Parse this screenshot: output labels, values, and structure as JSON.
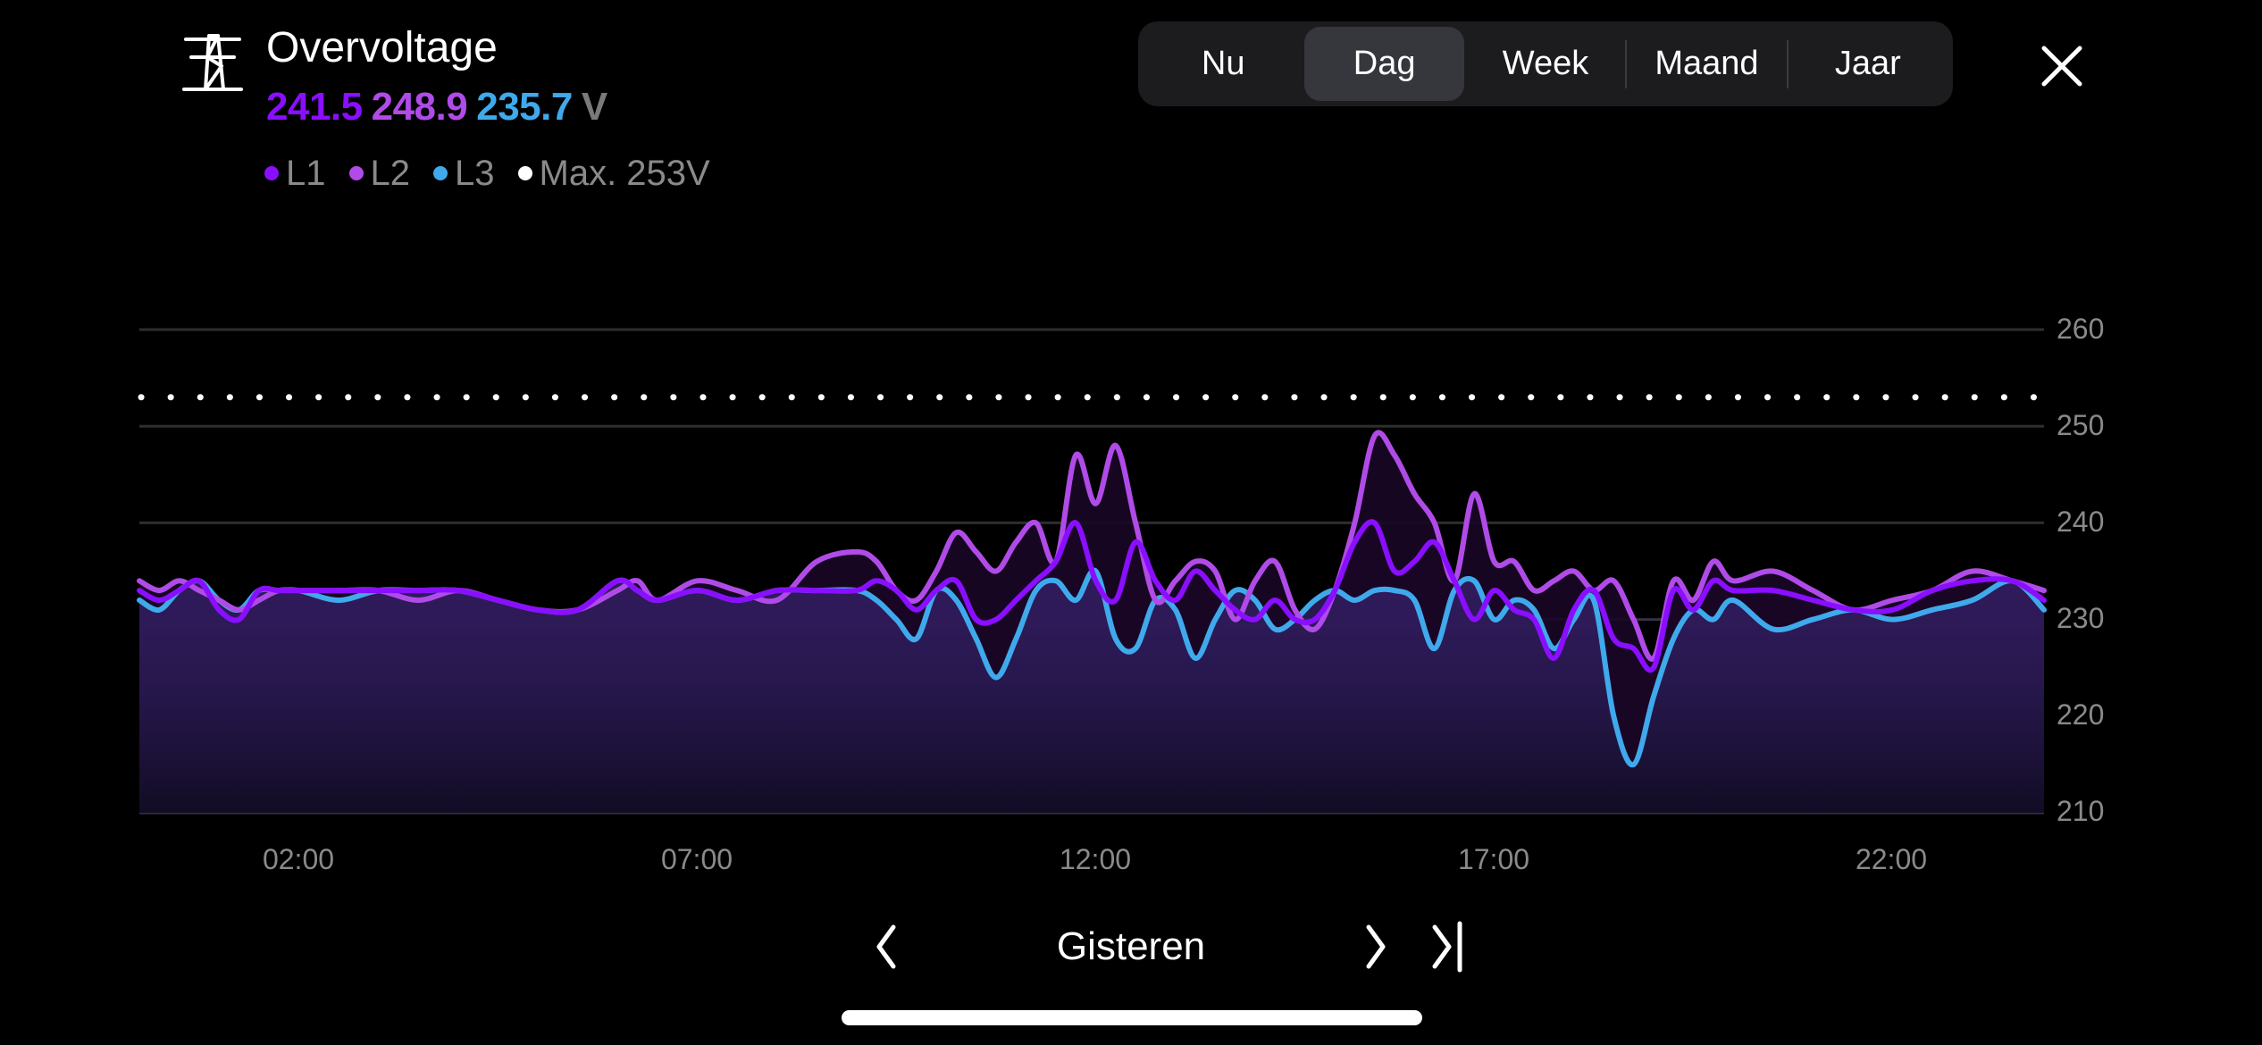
{
  "header": {
    "icon": "power-pylon-icon",
    "title": "Overvoltage",
    "values": [
      {
        "phase": "L1",
        "value": "241.5",
        "color": "#8a0eff"
      },
      {
        "phase": "L2",
        "value": "248.9",
        "color": "#b04be8"
      },
      {
        "phase": "L3",
        "value": "235.7",
        "color": "#3fa9ec"
      }
    ],
    "unit": "V",
    "legend": [
      {
        "label": "L1",
        "color": "#8a0eff"
      },
      {
        "label": "L2",
        "color": "#b04be8"
      },
      {
        "label": "L3",
        "color": "#3fa9ec"
      },
      {
        "label": "Max. 253V",
        "color": "#ffffff"
      }
    ]
  },
  "period_selector": {
    "options": [
      "Nu",
      "Dag",
      "Week",
      "Maand",
      "Jaar"
    ],
    "selected": "Dag"
  },
  "close_icon": "close-icon",
  "navigation": {
    "prev_icon": "chevron-left-icon",
    "label": "Gisteren",
    "next_icon": "chevron-right-icon",
    "last_icon": "skip-to-end-icon"
  },
  "colors": {
    "background": "#000000",
    "L1": "#8a0eff",
    "L2": "#b04be8",
    "L3": "#3fa9ec",
    "max_line": "#ffffff",
    "grid": "#2e2e30",
    "axis_text": "#8a8a8a",
    "fill": "#2a1b52"
  },
  "chart_data": {
    "type": "line",
    "title": "Overvoltage",
    "xlabel": "",
    "ylabel": "V",
    "xlim": [
      0,
      23.9
    ],
    "ylim": [
      210,
      260
    ],
    "yticks": [
      210,
      220,
      230,
      240,
      250,
      260
    ],
    "xticks": [
      {
        "label": "02:00",
        "hour": 2
      },
      {
        "label": "07:00",
        "hour": 7
      },
      {
        "label": "12:00",
        "hour": 12
      },
      {
        "label": "17:00",
        "hour": 17
      },
      {
        "label": "22:00",
        "hour": 22
      }
    ],
    "grid": true,
    "legend_position": "top-left",
    "threshold": {
      "label": "Max. 253V",
      "value": 253,
      "style": "dotted"
    },
    "x": [
      0,
      0.25,
      0.5,
      0.75,
      1,
      1.25,
      1.5,
      1.75,
      2,
      2.5,
      3,
      3.5,
      4,
      4.5,
      5,
      5.5,
      6,
      6.25,
      6.5,
      7,
      7.5,
      8,
      8.5,
      9,
      9.25,
      9.5,
      9.75,
      10,
      10.25,
      10.5,
      10.75,
      11,
      11.25,
      11.5,
      11.75,
      12,
      12.25,
      12.5,
      12.75,
      13,
      13.25,
      13.5,
      13.75,
      14,
      14.25,
      14.5,
      14.75,
      15,
      15.25,
      15.5,
      15.75,
      16,
      16.25,
      16.5,
      16.75,
      17,
      17.25,
      17.5,
      17.75,
      18,
      18.25,
      18.5,
      18.75,
      19,
      19.25,
      19.5,
      19.75,
      20,
      20.5,
      21,
      21.5,
      22,
      22.5,
      23,
      23.5,
      23.9
    ],
    "series": [
      {
        "name": "L1",
        "color": "#8a0eff",
        "values": [
          233,
          232,
          233,
          234,
          231,
          230,
          233,
          233,
          233,
          233,
          233,
          233,
          233,
          232,
          231,
          231,
          234,
          233,
          232,
          233,
          232,
          233,
          233,
          233,
          234,
          233,
          231,
          233,
          234,
          230,
          230,
          232,
          234,
          236,
          240,
          234,
          232,
          238,
          234,
          232,
          235,
          233,
          231,
          230,
          232,
          230,
          230,
          233,
          238,
          240,
          235,
          236,
          238,
          234,
          230,
          233,
          231,
          230,
          226,
          231,
          233,
          228,
          227,
          225,
          233,
          231,
          234,
          233,
          233,
          232,
          231,
          231,
          233,
          234,
          234,
          232
        ]
      },
      {
        "name": "L2",
        "color": "#b04be8",
        "values": [
          234,
          233,
          234,
          233,
          232,
          231,
          232,
          233,
          233,
          233,
          233,
          232,
          233,
          232,
          231,
          231,
          233,
          234,
          232,
          234,
          233,
          232,
          236,
          237,
          236,
          233,
          232,
          235,
          239,
          237,
          235,
          238,
          240,
          236,
          247,
          242,
          248,
          240,
          232,
          234,
          236,
          235,
          230,
          234,
          236,
          231,
          229,
          233,
          240,
          249,
          247,
          243,
          240,
          234,
          243,
          236,
          236,
          233,
          234,
          235,
          233,
          234,
          230,
          226,
          234,
          232,
          236,
          234,
          235,
          233,
          231,
          232,
          233,
          235,
          234,
          233
        ]
      },
      {
        "name": "L3",
        "color": "#3fa9ec",
        "values": [
          232,
          231,
          233,
          234,
          232,
          231,
          233,
          233,
          233,
          232,
          233,
          233,
          233,
          232,
          231,
          231,
          234,
          233,
          232,
          233,
          232,
          233,
          233,
          233,
          232,
          230,
          228,
          233,
          232,
          228,
          224,
          228,
          233,
          234,
          232,
          235,
          228,
          227,
          232,
          231,
          226,
          230,
          233,
          232,
          229,
          230,
          232,
          233,
          232,
          233,
          233,
          232,
          227,
          233,
          234,
          230,
          232,
          231,
          227,
          230,
          232,
          220,
          215,
          222,
          228,
          231,
          230,
          232,
          229,
          230,
          231,
          230,
          231,
          232,
          234,
          231
        ]
      }
    ]
  },
  "axis": {
    "y_labels": [
      "260",
      "250",
      "240",
      "230",
      "220",
      "210"
    ],
    "x_labels": [
      "02:00",
      "07:00",
      "12:00",
      "17:00",
      "22:00"
    ]
  }
}
